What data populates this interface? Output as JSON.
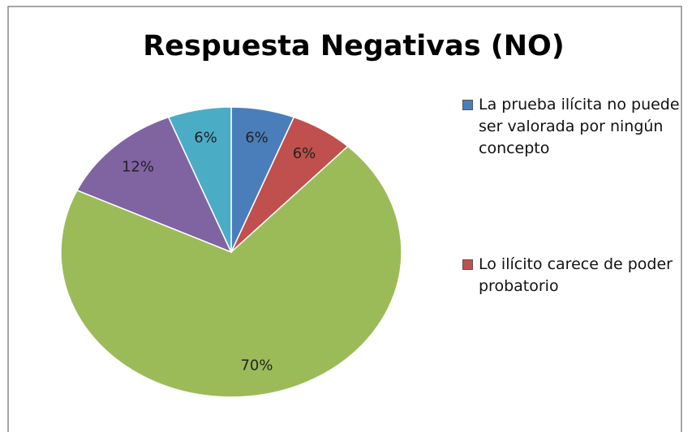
{
  "chart_data": {
    "type": "pie",
    "title": "Respuesta Negativas (NO)",
    "categories": [
      "La prueba ilícita no puede ser valorada por ningún concepto",
      "Lo ilícito carece de poder probatorio",
      null,
      null,
      null
    ],
    "values": [
      6,
      6,
      70,
      12,
      6
    ],
    "value_labels": [
      "6%",
      "6%",
      "70%",
      "12%",
      "6%"
    ],
    "colors": [
      "#4a7ebb",
      "#c0504d",
      "#9bbb59",
      "#8064a2",
      "#4bacc6"
    ],
    "legend": "right"
  }
}
